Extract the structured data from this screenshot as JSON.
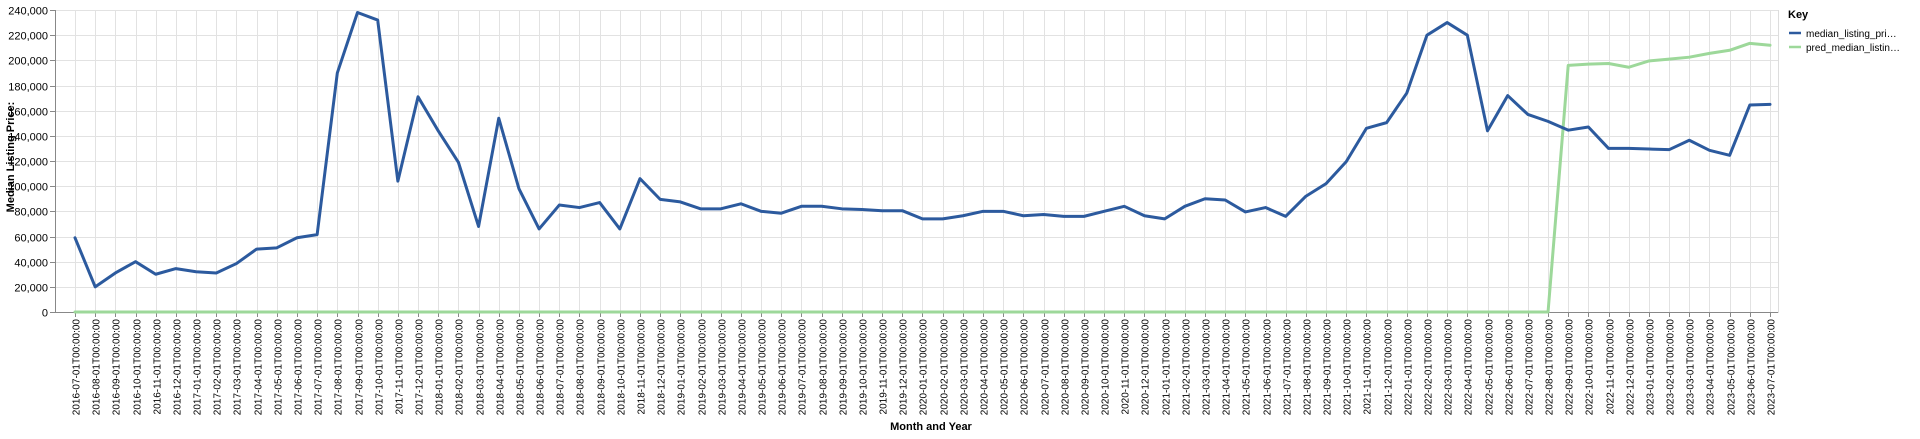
{
  "chart_data": {
    "type": "line",
    "title": "",
    "xlabel": "Month and Year",
    "ylabel": "Median Listing Price:",
    "ylim": [
      0,
      240000
    ],
    "y_ticks": [
      0,
      20000,
      40000,
      60000,
      80000,
      100000,
      120000,
      140000,
      160000,
      180000,
      200000,
      220000,
      240000
    ],
    "y_tick_labels": [
      "0",
      "20,000",
      "40,000",
      "60,000",
      "80,000",
      "100,000",
      "120,000",
      "140,000",
      "160,000",
      "180,000",
      "200,000",
      "220,000",
      "240,000"
    ],
    "grid": true,
    "legend": {
      "title": "Key",
      "position": "top-right",
      "entries": [
        "median_listing_pri…",
        "pred_median_listin…"
      ]
    },
    "categories": [
      "2016-07-01T00:00:00",
      "2016-08-01T00:00:00",
      "2016-09-01T00:00:00",
      "2016-10-01T00:00:00",
      "2016-11-01T00:00:00",
      "2016-12-01T00:00:00",
      "2017-01-01T00:00:00",
      "2017-02-01T00:00:00",
      "2017-03-01T00:00:00",
      "2017-04-01T00:00:00",
      "2017-05-01T00:00:00",
      "2017-06-01T00:00:00",
      "2017-07-01T00:00:00",
      "2017-08-01T00:00:00",
      "2017-09-01T00:00:00",
      "2017-10-01T00:00:00",
      "2017-11-01T00:00:00",
      "2017-12-01T00:00:00",
      "2018-01-01T00:00:00",
      "2018-02-01T00:00:00",
      "2018-03-01T00:00:00",
      "2018-04-01T00:00:00",
      "2018-05-01T00:00:00",
      "2018-06-01T00:00:00",
      "2018-07-01T00:00:00",
      "2018-08-01T00:00:00",
      "2018-09-01T00:00:00",
      "2018-10-01T00:00:00",
      "2018-11-01T00:00:00",
      "2018-12-01T00:00:00",
      "2019-01-01T00:00:00",
      "2019-02-01T00:00:00",
      "2019-03-01T00:00:00",
      "2019-04-01T00:00:00",
      "2019-05-01T00:00:00",
      "2019-06-01T00:00:00",
      "2019-07-01T00:00:00",
      "2019-08-01T00:00:00",
      "2019-09-01T00:00:00",
      "2019-10-01T00:00:00",
      "2019-11-01T00:00:00",
      "2019-12-01T00:00:00",
      "2020-01-01T00:00:00",
      "2020-02-01T00:00:00",
      "2020-03-01T00:00:00",
      "2020-04-01T00:00:00",
      "2020-05-01T00:00:00",
      "2020-06-01T00:00:00",
      "2020-07-01T00:00:00",
      "2020-08-01T00:00:00",
      "2020-09-01T00:00:00",
      "2020-10-01T00:00:00",
      "2020-11-01T00:00:00",
      "2020-12-01T00:00:00",
      "2021-01-01T00:00:00",
      "2021-02-01T00:00:00",
      "2021-03-01T00:00:00",
      "2021-04-01T00:00:00",
      "2021-05-01T00:00:00",
      "2021-06-01T00:00:00",
      "2021-07-01T00:00:00",
      "2021-08-01T00:00:00",
      "2021-09-01T00:00:00",
      "2021-10-01T00:00:00",
      "2021-11-01T00:00:00",
      "2021-12-01T00:00:00",
      "2022-01-01T00:00:00",
      "2022-02-01T00:00:00",
      "2022-03-01T00:00:00",
      "2022-04-01T00:00:00",
      "2022-05-01T00:00:00",
      "2022-06-01T00:00:00",
      "2022-07-01T00:00:00",
      "2022-08-01T00:00:00",
      "2022-09-01T00:00:00",
      "2022-10-01T00:00:00",
      "2022-11-01T00:00:00",
      "2022-12-01T00:00:00",
      "2023-01-01T00:00:00",
      "2023-02-01T00:00:00",
      "2023-03-01T00:00:00",
      "2023-04-01T00:00:00",
      "2023-05-01T00:00:00",
      "2023-06-01T00:00:00",
      "2023-07-01T00:00:00"
    ],
    "series": [
      {
        "name": "median_listing_pri…",
        "color": "#2c5a9e",
        "values": [
          59000,
          20000,
          31000,
          40000,
          30000,
          34500,
          32000,
          31000,
          38500,
          50000,
          51000,
          59000,
          61500,
          190000,
          238000,
          232000,
          104000,
          171000,
          144000,
          119000,
          68000,
          154000,
          98000,
          66000,
          85000,
          83000,
          87000,
          66000,
          106000,
          89500,
          87500,
          82000,
          82000,
          86000,
          80000,
          78500,
          84000,
          84000,
          82000,
          81500,
          80500,
          80500,
          74000,
          74000,
          76500,
          80000,
          80000,
          76500,
          77500,
          76000,
          76000,
          80000,
          84000,
          76500,
          74000,
          84000,
          90000,
          89000,
          79500,
          83000,
          76000,
          92000,
          102000,
          119500,
          146000,
          150500,
          174000,
          220000,
          230000,
          220000,
          144000,
          172000,
          157000,
          151500,
          144500,
          147000,
          130000,
          130000,
          129500,
          129000,
          136500,
          128500,
          124500,
          164500,
          165000
        ]
      },
      {
        "name": "pred_median_listin…",
        "color": "#9dd89a",
        "values": [
          0,
          0,
          0,
          0,
          0,
          0,
          0,
          0,
          0,
          0,
          0,
          0,
          0,
          0,
          0,
          0,
          0,
          0,
          0,
          0,
          0,
          0,
          0,
          0,
          0,
          0,
          0,
          0,
          0,
          0,
          0,
          0,
          0,
          0,
          0,
          0,
          0,
          0,
          0,
          0,
          0,
          0,
          0,
          0,
          0,
          0,
          0,
          0,
          0,
          0,
          0,
          0,
          0,
          0,
          0,
          0,
          0,
          0,
          0,
          0,
          0,
          0,
          0,
          0,
          0,
          0,
          0,
          0,
          0,
          0,
          0,
          0,
          0,
          0,
          196000,
          197000,
          197500,
          194500,
          199500,
          201000,
          202500,
          205500,
          208000,
          213500,
          212000
        ]
      }
    ]
  }
}
